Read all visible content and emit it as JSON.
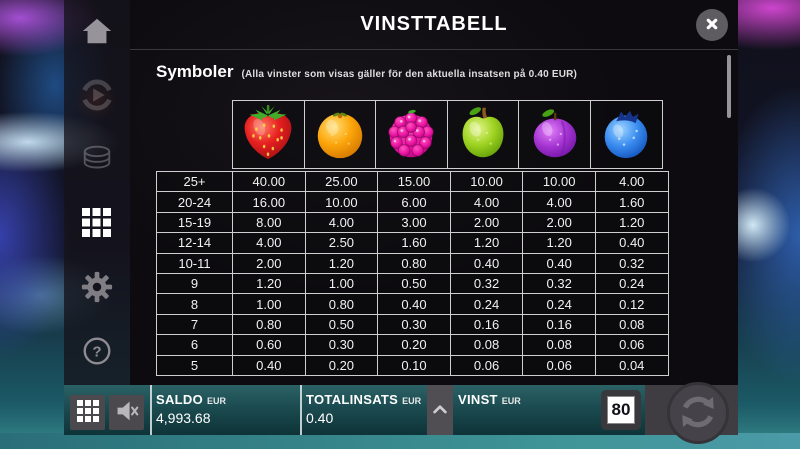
{
  "header": {
    "title": "VINSTTABELL",
    "close": "close"
  },
  "section": {
    "heading": "Symboler",
    "note": "(Alla vinster som visas gäller för den aktuella insatsen på 0.40 EUR)"
  },
  "paytable": {
    "symbols": [
      "strawberry",
      "orange",
      "raspberry",
      "apple",
      "plum",
      "blueberry"
    ],
    "rows": [
      [
        "25+",
        "40.00",
        "25.00",
        "15.00",
        "10.00",
        "10.00",
        "4.00"
      ],
      [
        "20-24",
        "16.00",
        "10.00",
        "6.00",
        "4.00",
        "4.00",
        "1.60"
      ],
      [
        "15-19",
        "8.00",
        "4.00",
        "3.00",
        "2.00",
        "2.00",
        "1.20"
      ],
      [
        "12-14",
        "4.00",
        "2.50",
        "1.60",
        "1.20",
        "1.20",
        "0.40"
      ],
      [
        "10-11",
        "2.00",
        "1.20",
        "0.80",
        "0.40",
        "0.40",
        "0.32"
      ],
      [
        "9",
        "1.20",
        "1.00",
        "0.50",
        "0.32",
        "0.32",
        "0.24"
      ],
      [
        "8",
        "1.00",
        "0.80",
        "0.40",
        "0.24",
        "0.24",
        "0.12"
      ],
      [
        "7",
        "0.80",
        "0.50",
        "0.30",
        "0.16",
        "0.16",
        "0.08"
      ],
      [
        "6",
        "0.60",
        "0.30",
        "0.20",
        "0.08",
        "0.08",
        "0.06"
      ],
      [
        "5",
        "0.40",
        "0.20",
        "0.10",
        "0.06",
        "0.06",
        "0.04"
      ]
    ]
  },
  "sidebar_icons": [
    "home-icon",
    "replay-icon",
    "coins-icon",
    "grid-menu-icon",
    "gear-icon",
    "help-icon"
  ],
  "bottom_bar": {
    "saldo_label": "SALDO",
    "saldo_currency": "EUR",
    "saldo_value": "4,993.68",
    "totalinsats_label": "TOTALINSATS",
    "totalinsats_currency": "EUR",
    "totalinsats_value": "0.40",
    "vinst_label": "VINST",
    "vinst_currency": "EUR",
    "vinst_value": "",
    "logo_badge": "80"
  },
  "colors": {
    "bar_teal_top": "#2b6266",
    "bar_teal_bottom": "#0e3338",
    "panel_bg": "#0d0b0f",
    "table_border": "#cfcfcf",
    "strawberry": "#e62020",
    "orange": "#fca50a",
    "raspberry": "#ea12a0",
    "apple": "#9fd322",
    "plum": "#a635d2",
    "blueberry": "#3a8cf0"
  }
}
